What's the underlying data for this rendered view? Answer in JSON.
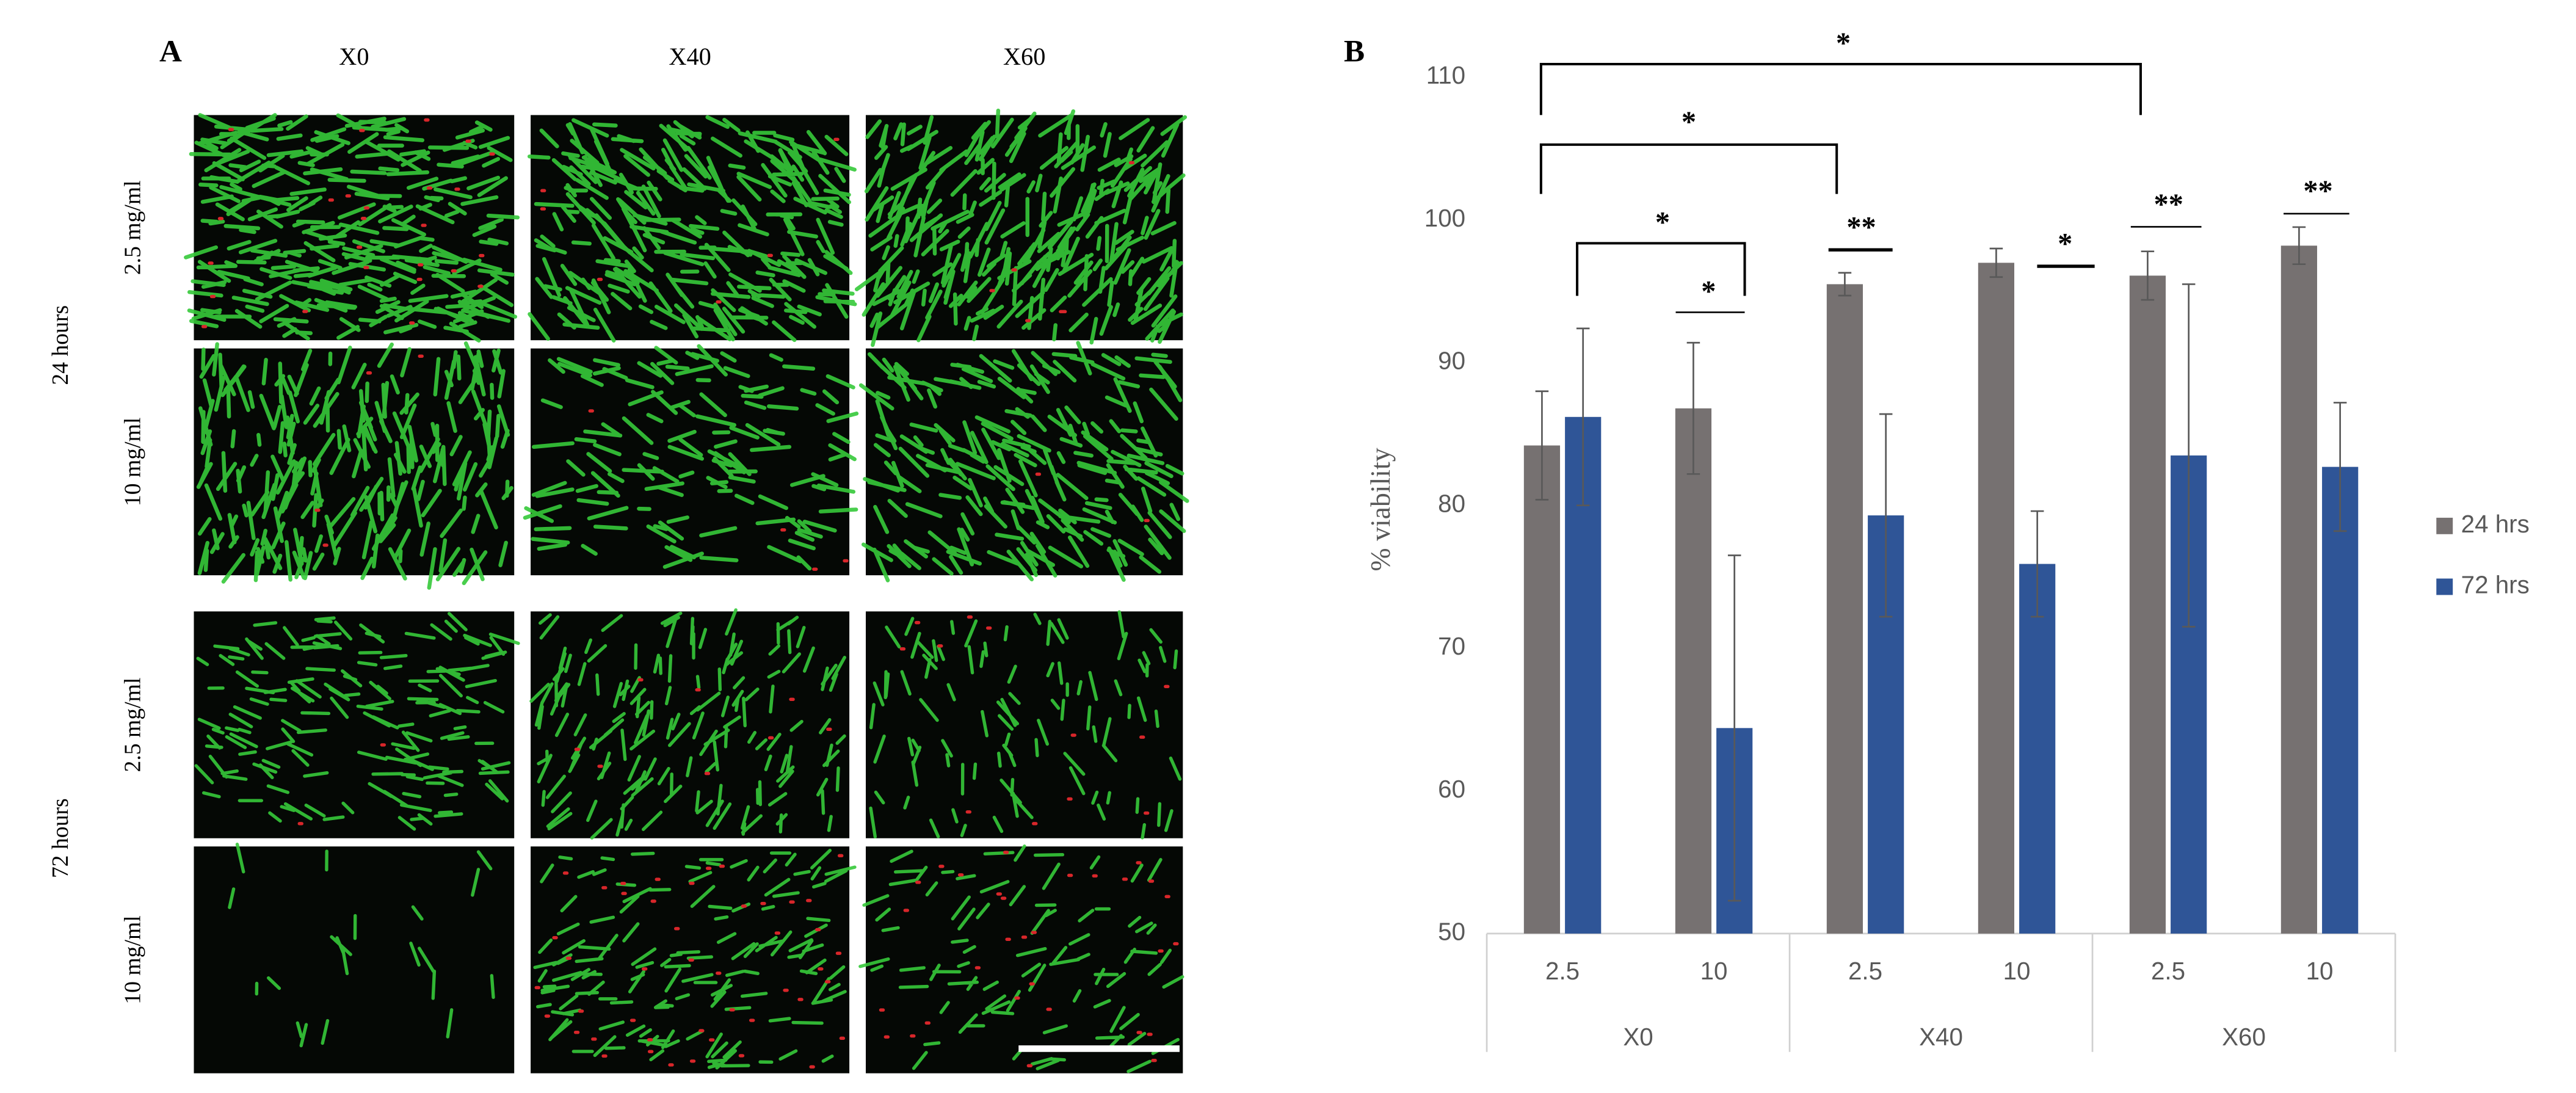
{
  "panel_a": {
    "label": "A",
    "columns": [
      "X0",
      "X40",
      "X60"
    ],
    "groups": [
      {
        "label": "24 hours",
        "rows": [
          "2.5 mg/ml",
          "10 mg/ml"
        ]
      },
      {
        "label": "72 hours",
        "rows": [
          "2.5 mg/ml",
          "10 mg/ml"
        ]
      }
    ]
  },
  "chart_data": {
    "type": "bar",
    "panel_label": "B",
    "y_label": "% viability",
    "categories": [
      "2.5",
      "10",
      "2.5",
      "10",
      "2.5",
      "10"
    ],
    "groups": [
      "X0",
      "X40",
      "X60"
    ],
    "ylim": [
      50,
      110
    ],
    "yticks": [
      50,
      60,
      70,
      80,
      90,
      100,
      110
    ],
    "series": [
      {
        "name": "24 hrs",
        "color": "#767171",
        "values": [
          84.2,
          86.8,
          95.5,
          97.0,
          96.1,
          98.2
        ],
        "errors": [
          3.8,
          4.6,
          0.8,
          1.0,
          1.7,
          1.3
        ]
      },
      {
        "name": "72 hrs",
        "color": "#2f5597",
        "values": [
          86.2,
          64.4,
          79.3,
          75.9,
          83.5,
          82.7
        ],
        "errors": [
          6.2,
          12.1,
          7.1,
          3.7,
          12.0,
          4.5
        ]
      }
    ],
    "annotations": [
      "*",
      "*",
      "*",
      "*",
      "**",
      "*",
      "**",
      "**"
    ],
    "legend": "right"
  }
}
